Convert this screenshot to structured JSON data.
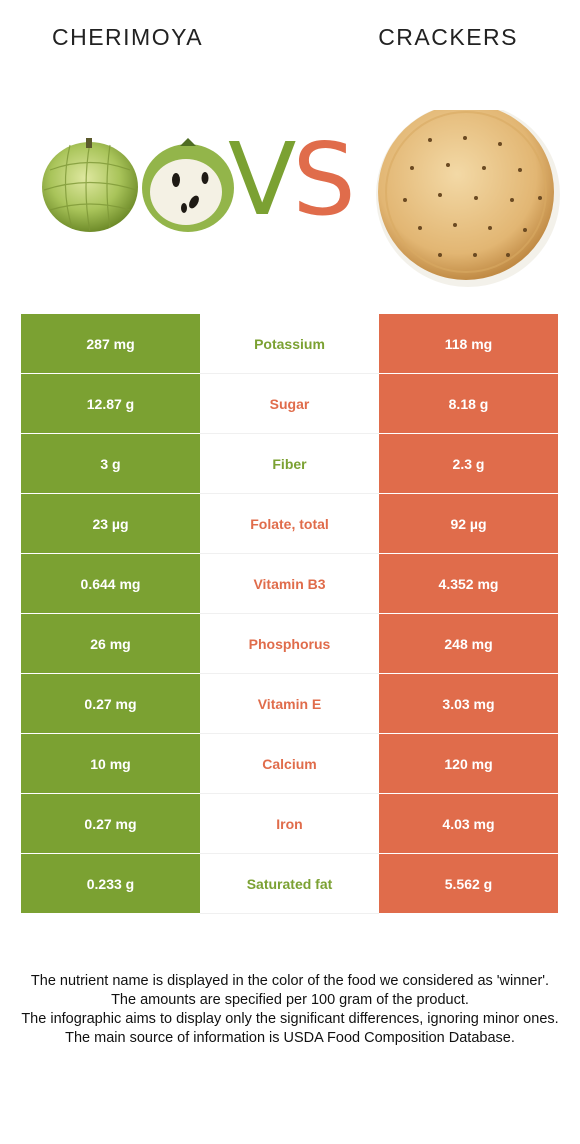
{
  "header": {
    "left_food": "CHERIMOYA",
    "right_food": "CRACKERS",
    "vs_v": "V",
    "vs_s": "S"
  },
  "colors": {
    "left": "#7ba132",
    "right": "#e06c4b"
  },
  "rows": [
    {
      "left": "287 mg",
      "nutrient": "Potassium",
      "right": "118 mg",
      "winner": "left"
    },
    {
      "left": "12.87 g",
      "nutrient": "Sugar",
      "right": "8.18 g",
      "winner": "right"
    },
    {
      "left": "3 g",
      "nutrient": "Fiber",
      "right": "2.3 g",
      "winner": "left"
    },
    {
      "left": "23 µg",
      "nutrient": "Folate, total",
      "right": "92 µg",
      "winner": "right"
    },
    {
      "left": "0.644 mg",
      "nutrient": "Vitamin B3",
      "right": "4.352 mg",
      "winner": "right"
    },
    {
      "left": "26 mg",
      "nutrient": "Phosphorus",
      "right": "248 mg",
      "winner": "right"
    },
    {
      "left": "0.27 mg",
      "nutrient": "Vitamin E",
      "right": "3.03 mg",
      "winner": "right"
    },
    {
      "left": "10 mg",
      "nutrient": "Calcium",
      "right": "120 mg",
      "winner": "right"
    },
    {
      "left": "0.27 mg",
      "nutrient": "Iron",
      "right": "4.03 mg",
      "winner": "right"
    },
    {
      "left": "0.233 g",
      "nutrient": "Saturated fat",
      "right": "5.562 g",
      "winner": "left"
    }
  ],
  "footnote": {
    "line1": "The nutrient name is displayed in the color of the food we considered as 'winner'.",
    "line2": "The amounts are specified per 100 gram of the product.",
    "line3": "The infographic aims to display only the significant differences, ignoring minor ones.",
    "line4": "The main source of information is USDA Food Composition Database."
  }
}
